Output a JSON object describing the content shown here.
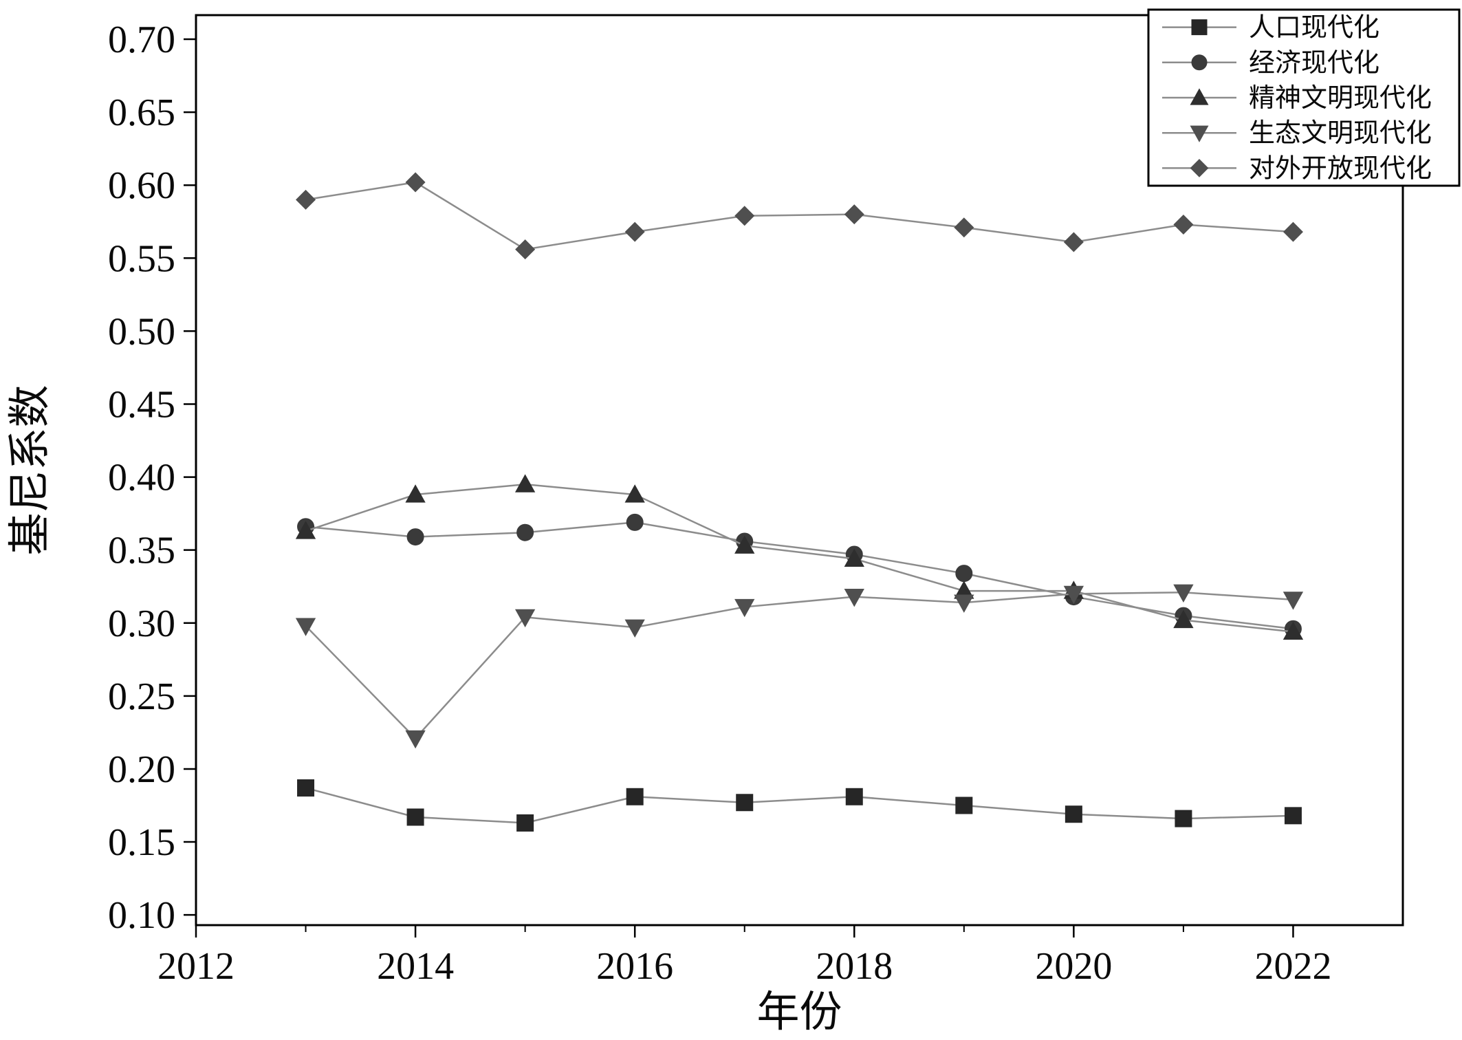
{
  "figure": {
    "background": "#ffffff"
  },
  "chart_data": {
    "type": "line",
    "title": "",
    "xlabel": "年份",
    "ylabel": "基尼系数",
    "x": [
      2013,
      2014,
      2015,
      2016,
      2017,
      2018,
      2019,
      2020,
      2021,
      2022
    ],
    "xlim": [
      2012,
      2023
    ],
    "ylim": [
      0.1,
      0.7
    ],
    "xticks_major": [
      2012,
      2014,
      2016,
      2018,
      2020,
      2022
    ],
    "xticks_minor": [
      2013,
      2015,
      2017,
      2019,
      2021
    ],
    "yticks": [
      0.1,
      0.15,
      0.2,
      0.25,
      0.3,
      0.35,
      0.4,
      0.45,
      0.5,
      0.55,
      0.6,
      0.65,
      0.7
    ],
    "grid": false,
    "legend_position": "top-right",
    "colors": {
      "axis": "#000000",
      "line": "#8c8c8c",
      "text": "#0a0a0a",
      "legend_background": "#ffffff"
    },
    "series": [
      {
        "name": "人口现代化",
        "marker": "square",
        "color": "#262626",
        "values": [
          0.187,
          0.167,
          0.163,
          0.181,
          0.177,
          0.181,
          0.175,
          0.169,
          0.166,
          0.168
        ]
      },
      {
        "name": "经济现代化",
        "marker": "circle",
        "color": "#3a3a3a",
        "values": [
          0.366,
          0.359,
          0.362,
          0.369,
          0.356,
          0.347,
          0.334,
          0.318,
          0.305,
          0.296
        ]
      },
      {
        "name": "精神文明现代化",
        "marker": "triangle-up",
        "color": "#2e2e2e",
        "values": [
          0.363,
          0.388,
          0.395,
          0.388,
          0.353,
          0.344,
          0.322,
          0.322,
          0.302,
          0.294
        ]
      },
      {
        "name": "生态文明现代化",
        "marker": "triangle-down",
        "color": "#4f4f4f",
        "values": [
          0.298,
          0.221,
          0.304,
          0.297,
          0.311,
          0.318,
          0.314,
          0.32,
          0.321,
          0.316
        ]
      },
      {
        "name": "对外开放现代化",
        "marker": "diamond",
        "color": "#4f4f4f",
        "values": [
          0.59,
          0.602,
          0.556,
          0.568,
          0.579,
          0.58,
          0.571,
          0.561,
          0.573,
          0.568
        ]
      }
    ]
  }
}
